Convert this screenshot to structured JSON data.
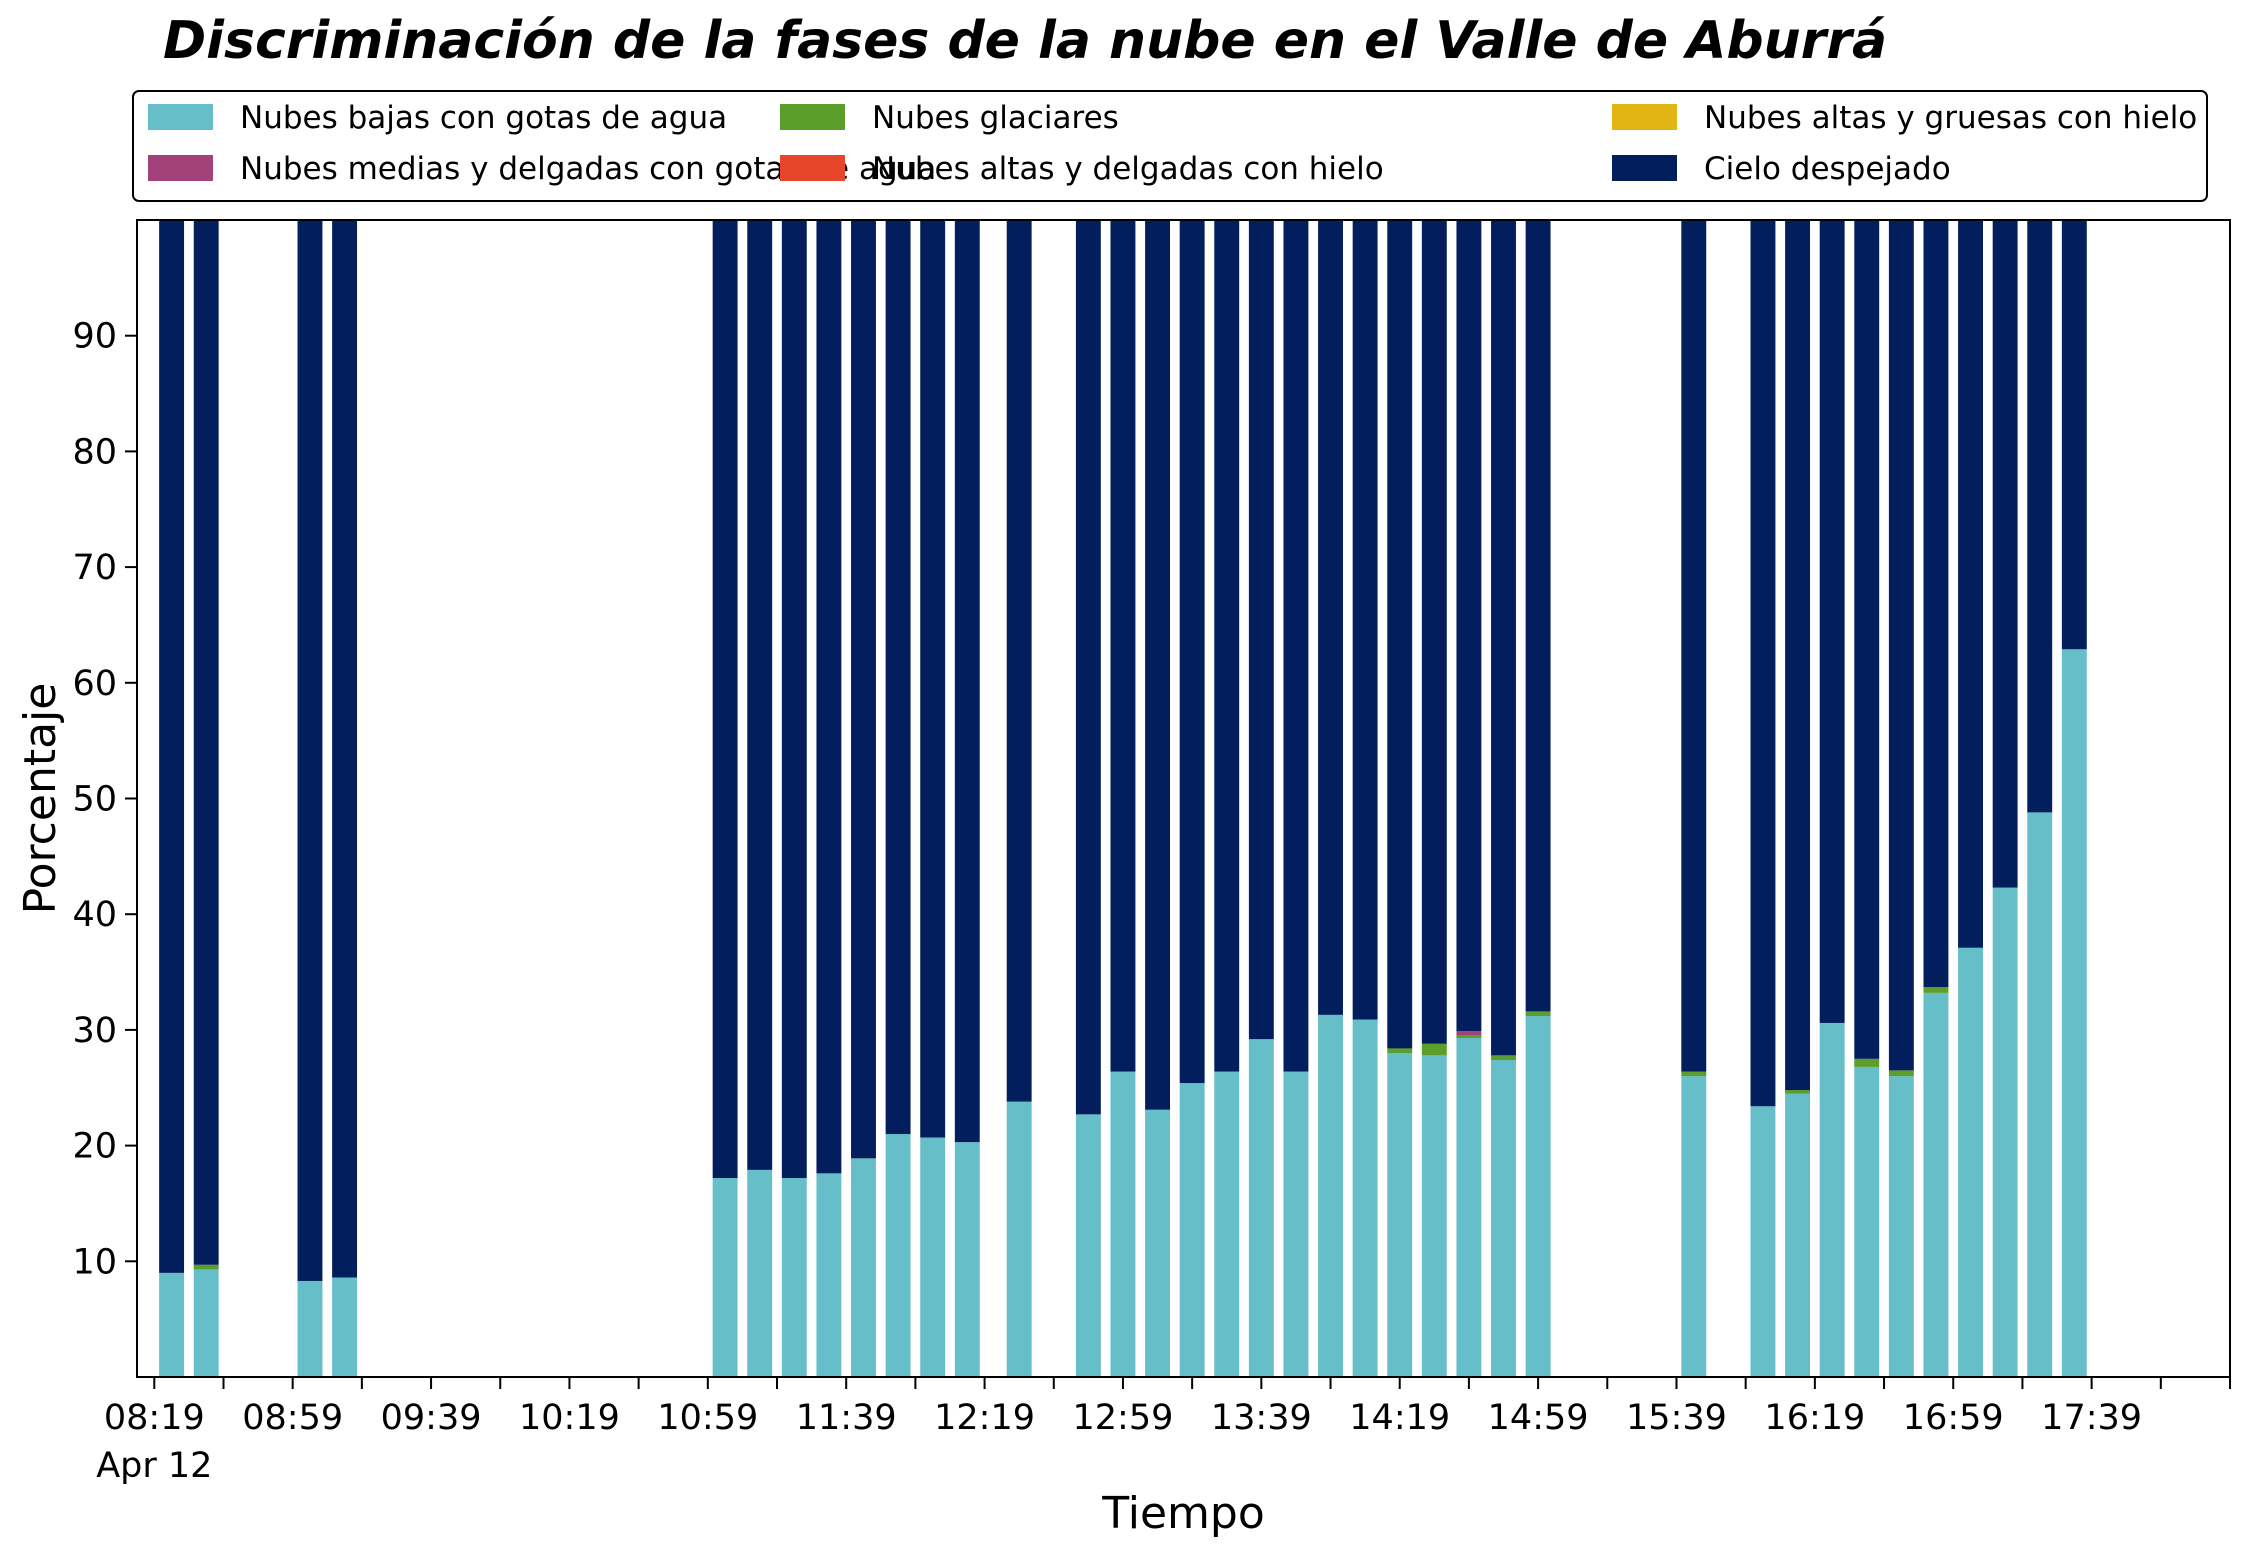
{
  "chart_data": {
    "type": "bar",
    "stacked": true,
    "title": "Discriminación de la fases de la nube en el Valle de Aburrá",
    "xlabel": "Tiempo",
    "ylabel": "Porcentaje",
    "ylim": [
      0,
      100
    ],
    "yticks": [
      10,
      20,
      30,
      40,
      50,
      60,
      70,
      80,
      90
    ],
    "xlim": [
      "08:14",
      "18:19"
    ],
    "xtick_labels": [
      "08:19",
      "08:59",
      "09:39",
      "10:19",
      "10:59",
      "11:39",
      "12:19",
      "12:59",
      "13:39",
      "14:19",
      "14:59",
      "15:39",
      "16:19",
      "16:59",
      "17:39"
    ],
    "xtick_date_label": "Apr 12",
    "legend_position": "top",
    "grid": false,
    "x": [
      "08:24",
      "08:34",
      "09:04",
      "09:14",
      "11:04",
      "11:14",
      "11:24",
      "11:34",
      "11:44",
      "11:54",
      "12:04",
      "12:14",
      "12:29",
      "12:49",
      "12:59",
      "13:09",
      "13:19",
      "13:29",
      "13:39",
      "13:49",
      "13:59",
      "14:09",
      "14:19",
      "14:29",
      "14:39",
      "14:49",
      "14:59",
      "15:44",
      "16:04",
      "16:14",
      "16:24",
      "16:34",
      "16:44",
      "16:54",
      "17:04",
      "17:14",
      "17:24",
      "17:34"
    ],
    "series": [
      {
        "name": "Nubes bajas con gotas de agua",
        "color": "#66bec9",
        "values": [
          9.0,
          9.3,
          8.3,
          8.6,
          17.2,
          17.9,
          17.2,
          17.6,
          18.9,
          21.0,
          20.7,
          20.3,
          23.8,
          22.7,
          26.4,
          23.1,
          25.4,
          26.4,
          29.2,
          26.4,
          31.3,
          30.9,
          28.0,
          27.8,
          29.3,
          27.4,
          31.2,
          26.0,
          23.4,
          24.5,
          30.6,
          26.8,
          26.0,
          33.2,
          37.1,
          42.3,
          48.8,
          62.9
        ]
      },
      {
        "name": "Nubes glaciares",
        "color": "#5b9e2a",
        "values": [
          0,
          0.4,
          0,
          0,
          0,
          0,
          0,
          0,
          0,
          0,
          0,
          0,
          0,
          0,
          0,
          0,
          0,
          0,
          0,
          0,
          0,
          0,
          0.4,
          1.0,
          0.2,
          0.4,
          0.4,
          0.4,
          0,
          0.3,
          0,
          0.7,
          0.5,
          0.5,
          0,
          0,
          0,
          0
        ]
      },
      {
        "name": "Nubes altas y gruesas con hielo",
        "color": "#e0b514",
        "values": [
          0,
          0,
          0,
          0,
          0,
          0,
          0,
          0,
          0,
          0,
          0,
          0,
          0,
          0,
          0,
          0,
          0,
          0,
          0,
          0,
          0,
          0,
          0,
          0,
          0,
          0,
          0,
          0,
          0,
          0,
          0,
          0,
          0,
          0,
          0,
          0,
          0,
          0
        ]
      },
      {
        "name": "Nubes medias y delgadas con gotas de agua",
        "color": "#a3427a",
        "values": [
          0,
          0,
          0,
          0,
          0,
          0,
          0,
          0,
          0,
          0,
          0,
          0,
          0,
          0,
          0,
          0,
          0,
          0,
          0,
          0,
          0,
          0,
          0,
          0,
          0.4,
          0,
          0,
          0,
          0,
          0,
          0,
          0,
          0,
          0,
          0,
          0,
          0,
          0
        ]
      },
      {
        "name": "Nubes altas y delgadas con hielo",
        "color": "#e8462a",
        "values": [
          0,
          0,
          0,
          0,
          0,
          0,
          0,
          0,
          0,
          0,
          0,
          0,
          0,
          0,
          0,
          0,
          0,
          0,
          0,
          0,
          0,
          0,
          0,
          0,
          0,
          0,
          0,
          0,
          0,
          0,
          0,
          0,
          0,
          0,
          0,
          0,
          0,
          0
        ]
      },
      {
        "name": "Cielo despejado",
        "color": "#031e5c",
        "values": [
          91.0,
          90.3,
          91.7,
          91.4,
          82.8,
          82.1,
          82.8,
          82.4,
          81.1,
          79.0,
          79.3,
          79.7,
          76.2,
          77.3,
          73.6,
          76.9,
          74.6,
          73.6,
          70.8,
          73.6,
          68.7,
          69.1,
          71.6,
          71.2,
          70.1,
          72.2,
          68.4,
          73.6,
          76.6,
          75.2,
          69.4,
          72.5,
          73.5,
          66.3,
          62.9,
          57.7,
          51.2,
          37.1
        ]
      }
    ]
  }
}
